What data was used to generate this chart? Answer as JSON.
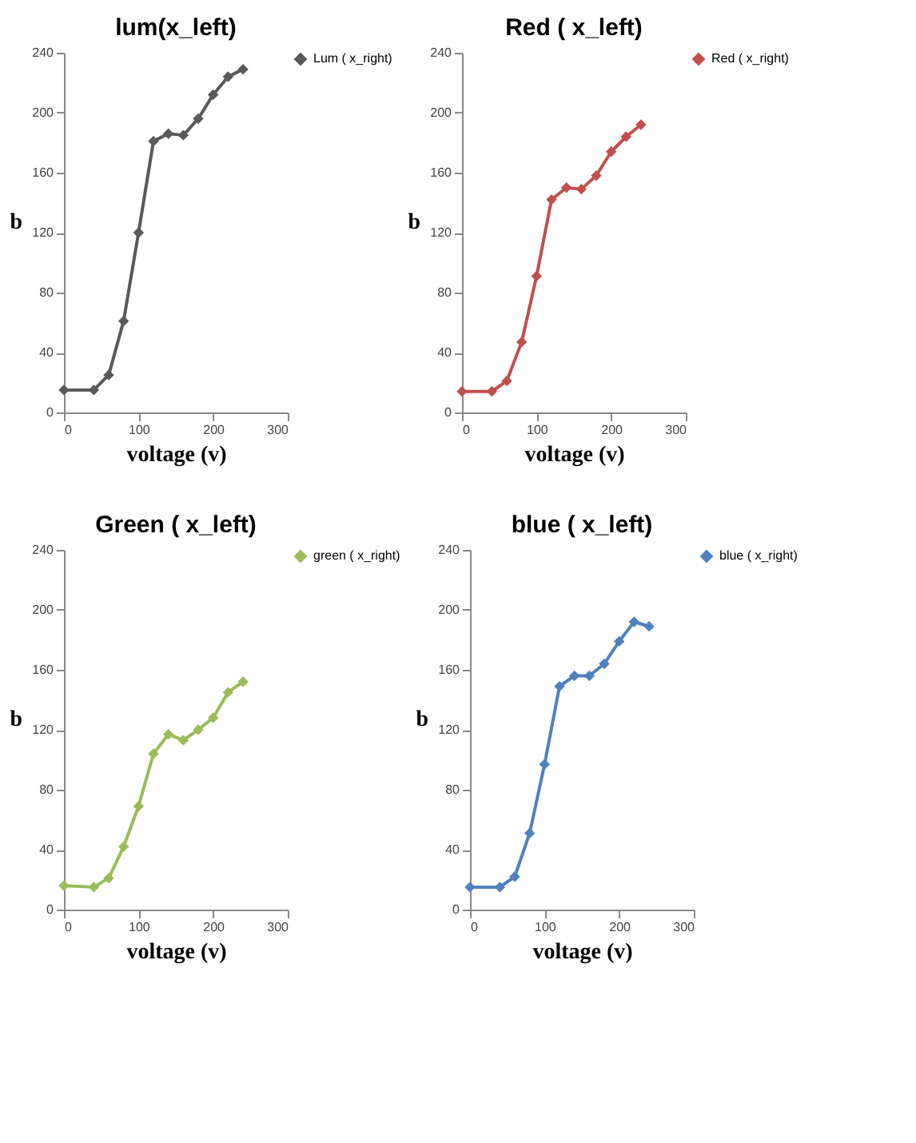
{
  "chart_data": [
    {
      "type": "line",
      "title": "lum(x_left)",
      "xlabel": "voltage (v)",
      "ylabel": "b",
      "x": [
        0,
        40,
        60,
        80,
        100,
        120,
        140,
        160,
        180,
        200,
        220,
        240
      ],
      "series": [
        {
          "name": "Lum ( x_right)",
          "color": "#595959",
          "values": [
            15,
            15,
            25,
            61,
            120,
            181,
            186,
            185,
            196,
            212,
            224,
            229
          ]
        }
      ],
      "xlim": [
        0,
        300
      ],
      "xticks": [
        0,
        100,
        200,
        300
      ],
      "ylim": [
        0,
        240
      ],
      "yticks": [
        0,
        40,
        80,
        120,
        160,
        200,
        240
      ],
      "grid": false,
      "legend": "right",
      "marker": "diamond",
      "line_style": "solid"
    },
    {
      "type": "line",
      "title": "Red ( x_left)",
      "xlabel": "voltage (v)",
      "ylabel": "b",
      "x": [
        0,
        40,
        60,
        80,
        100,
        120,
        140,
        160,
        180,
        200,
        220,
        240
      ],
      "series": [
        {
          "name": "Red ( x_right)",
          "color": "#c0504d",
          "values": [
            14,
            14,
            21,
            47,
            91,
            142,
            150,
            149,
            158,
            174,
            184,
            192
          ]
        }
      ],
      "xlim": [
        0,
        300
      ],
      "xticks": [
        0,
        100,
        200,
        300
      ],
      "ylim": [
        0,
        240
      ],
      "yticks": [
        0,
        40,
        80,
        120,
        160,
        200,
        240
      ],
      "grid": false,
      "legend": "right",
      "marker": "diamond",
      "line_style": "solid"
    },
    {
      "type": "line",
      "title": "Green ( x_left)",
      "xlabel": "voltage (v)",
      "ylabel": "b",
      "x": [
        0,
        40,
        60,
        80,
        100,
        120,
        140,
        160,
        180,
        200,
        220,
        240
      ],
      "series": [
        {
          "name": "green ( x_right)",
          "color": "#9bbb59",
          "values": [
            16,
            15,
            21,
            42,
            69,
            104,
            117,
            113,
            120,
            128,
            145,
            152
          ]
        }
      ],
      "xlim": [
        0,
        300
      ],
      "xticks": [
        0,
        100,
        200,
        300
      ],
      "ylim": [
        0,
        240
      ],
      "yticks": [
        0,
        40,
        80,
        120,
        160,
        200,
        240
      ],
      "grid": false,
      "legend": "right",
      "marker": "diamond",
      "line_style": "solid"
    },
    {
      "type": "line",
      "title": "blue ( x_left)",
      "xlabel": "voltage (v)",
      "ylabel": "b",
      "x": [
        0,
        40,
        60,
        80,
        100,
        120,
        140,
        160,
        180,
        200,
        220,
        240
      ],
      "series": [
        {
          "name": "blue ( x_right)",
          "color": "#4f81bd",
          "values": [
            15,
            15,
            22,
            51,
            97,
            149,
            156,
            156,
            164,
            179,
            192,
            189
          ]
        }
      ],
      "xlim": [
        0,
        300
      ],
      "xticks": [
        0,
        100,
        200,
        300
      ],
      "ylim": [
        0,
        240
      ],
      "yticks": [
        0,
        40,
        80,
        120,
        160,
        200,
        240
      ],
      "grid": false,
      "legend": "right",
      "marker": "diamond",
      "line_style": "solid"
    }
  ]
}
